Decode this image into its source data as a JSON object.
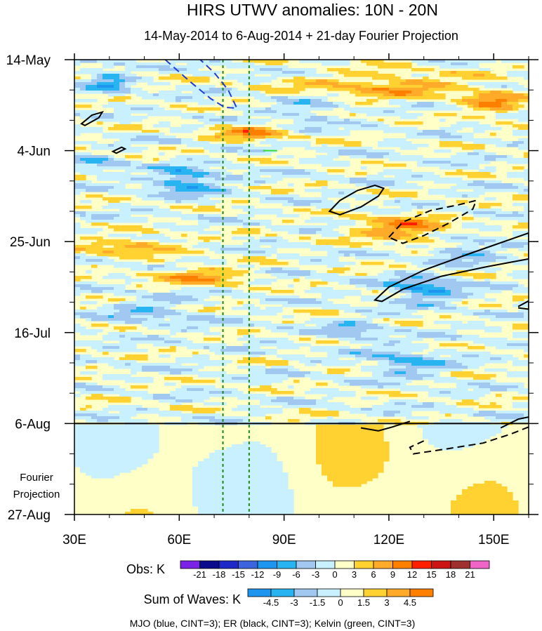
{
  "chart_data": {
    "type": "heatmap",
    "title": "HIRS UTWV anomalies: 10N - 20N",
    "subtitle": "14-May-2014 to 6-Aug-2014 + 21-day Fourier Projection",
    "x_axis": {
      "range": [
        30,
        160
      ],
      "ticks": [
        {
          "value": 30,
          "label": "30E"
        },
        {
          "value": 60,
          "label": "60E"
        },
        {
          "value": 90,
          "label": "90E"
        },
        {
          "value": 120,
          "label": "120E"
        },
        {
          "value": 150,
          "label": "150E"
        }
      ]
    },
    "y_axis": {
      "range_days": [
        0,
        105
      ],
      "ticks": [
        {
          "day": 0,
          "label": "14-May"
        },
        {
          "day": 21,
          "label": "4-Jun"
        },
        {
          "day": 42,
          "label": "25-Jun"
        },
        {
          "day": 63,
          "label": "16-Jul"
        },
        {
          "day": 84,
          "label": "6-Aug"
        },
        {
          "day": 105,
          "label": "27-Aug"
        }
      ]
    },
    "projection_start_day": 84,
    "projection_label": [
      "Fourier",
      "Projection"
    ],
    "reference_longitudes": [
      72.5,
      80
    ],
    "obs_legend": {
      "label": "Obs: K",
      "levels": [
        "-21",
        "-18",
        "-15",
        "-12",
        "-9",
        "-6",
        "-3",
        "0",
        "3",
        "6",
        "9",
        "12",
        "15",
        "18",
        "21"
      ],
      "colors": [
        "#7b22e6",
        "#0a0a8c",
        "#1e28c8",
        "#3c64dc",
        "#1e96f0",
        "#28b4f0",
        "#a0c8f0",
        "#c8f0ff",
        "#ffffc8",
        "#ffd232",
        "#ffaa28",
        "#ff8000",
        "#ff1e00",
        "#cc1414",
        "#a03030",
        "#f064c8"
      ]
    },
    "waves_legend": {
      "label": "Sum of Waves: K",
      "levels": [
        "-4.5",
        "-3",
        "-1.5",
        "0",
        "1.5",
        "3",
        "4.5"
      ],
      "colors": [
        "#1e96f0",
        "#28b4f0",
        "#a0c8f0",
        "#c8f0ff",
        "#ffffc8",
        "#ffd232",
        "#ffaa28",
        "#ff8000"
      ]
    },
    "footer": "MJO (blue, CINT=3); ER (black, CINT=3); Kelvin (green, CINT=3)"
  }
}
